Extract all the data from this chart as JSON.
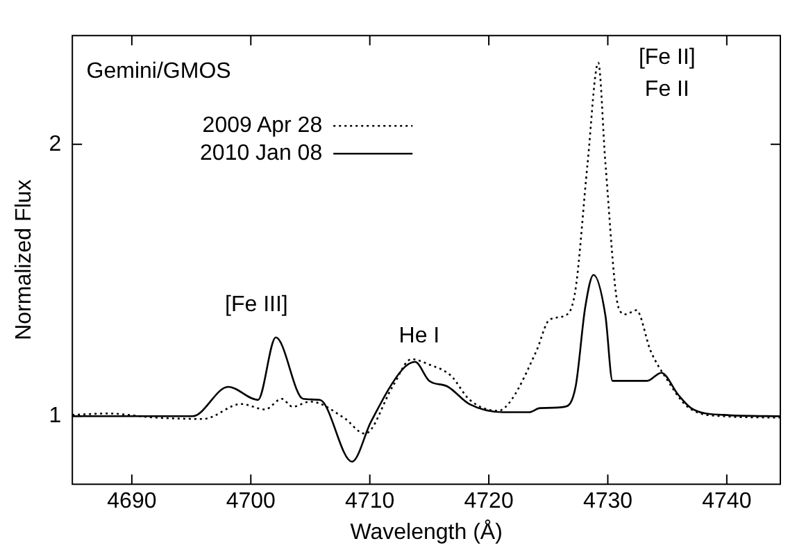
{
  "chart_data": {
    "type": "line",
    "xlabel": "Wavelength (Å)",
    "ylabel": "Normalized Flux",
    "xlim": [
      4685,
      4744.5
    ],
    "xticks": [
      4690,
      4700,
      4710,
      4720,
      4730,
      4740
    ],
    "ylim": [
      0.75,
      2.4
    ],
    "yticks": [
      1,
      2
    ],
    "grid": false,
    "legend": "top left",
    "marker": "none",
    "annotations": [
      "Gemini/GMOS",
      "[Fe III]",
      "He I",
      "[Fe II]",
      "Fe II"
    ],
    "series": [
      {
        "name": "2009 Apr 28",
        "color": "#000000",
        "line_style": "dotted",
        "x": [
          4685,
          4688,
          4692,
          4696,
          4699.2,
          4701.2,
          4702.6,
          4703.5,
          4705,
          4707.8,
          4709.6,
          4711.9,
          4713.5,
          4715,
          4716.8,
          4718.4,
          4720.8,
          4721.9,
          4724,
          4725.1,
          4726.6,
          4727.3,
          4728.3,
          4729.2,
          4729.8,
          4730.9,
          4731.5,
          4732.4,
          4733.6,
          4734.9,
          4736.7,
          4739.7,
          4744.5
        ],
        "values": [
          1.005,
          1.01,
          0.995,
          0.99,
          1.045,
          1.025,
          1.064,
          1.035,
          1.054,
          0.995,
          0.936,
          1.108,
          1.21,
          1.19,
          1.15,
          1.06,
          1.02,
          1.06,
          1.24,
          1.355,
          1.375,
          1.47,
          1.93,
          2.3,
          1.93,
          1.4,
          1.375,
          1.39,
          1.24,
          1.14,
          1.035,
          1.0,
          0.995
        ]
      },
      {
        "name": "2010 Jan 08",
        "color": "#000000",
        "line_style": "solid",
        "x": [
          4685,
          4690,
          4695.1,
          4698.1,
          4700.6,
          4702.1,
          4704.4,
          4705.8,
          4708.5,
          4710.1,
          4712.7,
          4713.8,
          4715,
          4716.5,
          4718.4,
          4721.2,
          4723.4,
          4724.3,
          4726.4,
          4727.3,
          4728.1,
          4728.8,
          4729.8,
          4730.4,
          4731.5,
          4733.3,
          4734.5,
          4735.9,
          4737,
          4739.7,
          4744.5
        ],
        "values": [
          1.0,
          1.0,
          1.0,
          1.108,
          1.06,
          1.29,
          1.064,
          1.06,
          0.833,
          0.98,
          1.17,
          1.2,
          1.13,
          1.11,
          1.044,
          1.015,
          1.015,
          1.03,
          1.035,
          1.11,
          1.4,
          1.52,
          1.37,
          1.13,
          1.13,
          1.13,
          1.16,
          1.08,
          1.03,
          1.005,
          1.0
        ]
      }
    ]
  }
}
